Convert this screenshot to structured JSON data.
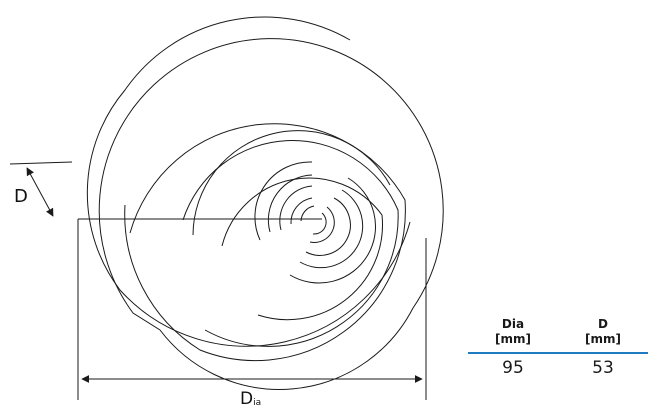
{
  "labels": {
    "depth": "D",
    "diameter_main": "D",
    "diameter_sub": "ia"
  },
  "table": {
    "headers": [
      {
        "name": "Dia",
        "unit": "[mm]"
      },
      {
        "name": "D",
        "unit": "[mm]"
      }
    ],
    "rows": [
      [
        "95",
        "53"
      ]
    ]
  },
  "colors": {
    "line": "#1a1a1a",
    "table_rule": "#1f7cc2"
  }
}
